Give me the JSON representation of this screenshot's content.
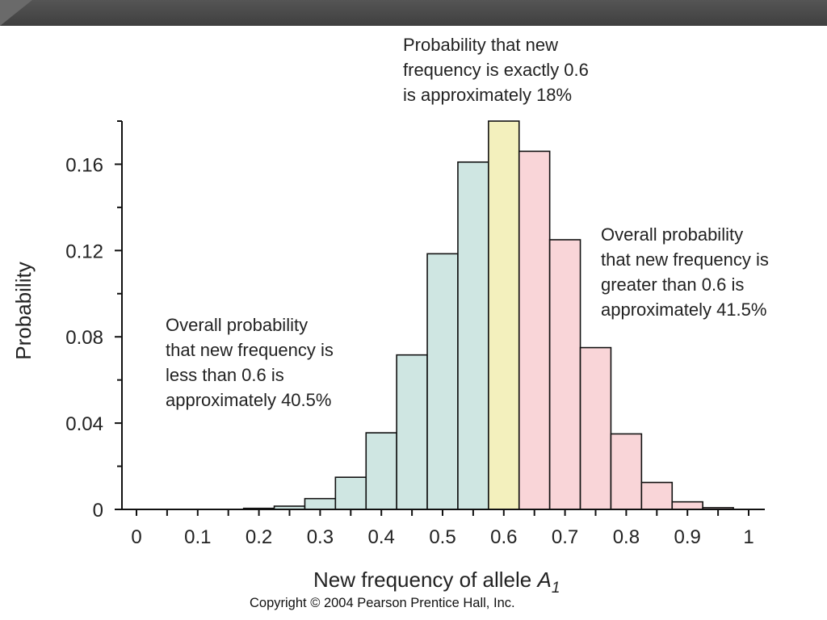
{
  "chart_data": {
    "type": "bar",
    "xlabel": "New frequency of allele ",
    "xlabel_symbol": "A",
    "xlabel_subscript": "1",
    "ylabel": "Probability",
    "xlim": [
      0,
      1
    ],
    "ylim": [
      0,
      0.18
    ],
    "x_ticks": [
      "0",
      "0.1",
      "0.2",
      "0.3",
      "0.4",
      "0.5",
      "0.6",
      "0.7",
      "0.8",
      "0.9",
      "1"
    ],
    "y_ticks": [
      "0",
      "0.04",
      "0.08",
      "0.12",
      "0.16"
    ],
    "bin_width": 0.05,
    "bins": [
      {
        "x": 0.2,
        "value": 0.0005,
        "group": "less"
      },
      {
        "x": 0.25,
        "value": 0.0015,
        "group": "less"
      },
      {
        "x": 0.3,
        "value": 0.005,
        "group": "less"
      },
      {
        "x": 0.35,
        "value": 0.0149,
        "group": "less"
      },
      {
        "x": 0.4,
        "value": 0.0355,
        "group": "less"
      },
      {
        "x": 0.45,
        "value": 0.0716,
        "group": "less"
      },
      {
        "x": 0.5,
        "value": 0.1185,
        "group": "less"
      },
      {
        "x": 0.55,
        "value": 0.161,
        "group": "less"
      },
      {
        "x": 0.6,
        "value": 0.18,
        "group": "exact"
      },
      {
        "x": 0.65,
        "value": 0.166,
        "group": "greater"
      },
      {
        "x": 0.7,
        "value": 0.125,
        "group": "greater"
      },
      {
        "x": 0.75,
        "value": 0.075,
        "group": "greater"
      },
      {
        "x": 0.8,
        "value": 0.035,
        "group": "greater"
      },
      {
        "x": 0.85,
        "value": 0.0125,
        "group": "greater"
      },
      {
        "x": 0.9,
        "value": 0.0035,
        "group": "greater"
      },
      {
        "x": 0.95,
        "value": 0.0008,
        "group": "greater"
      }
    ],
    "colors": {
      "less": "#cfe6e2",
      "exact": "#f3f0bd",
      "greater": "#f9d5d8",
      "edge": "#111111"
    }
  },
  "annotations": {
    "exact": "Probability that new\nfrequency is exactly 0.6\nis approximately 18%",
    "greater": "Overall probability\nthat new frequency is\ngreater than 0.6 is\napproximately 41.5%",
    "less": "Overall probability\nthat new frequency is\nless than 0.6 is\napproximately 40.5%"
  },
  "copyright": "Copyright © 2004 Pearson Prentice Hall, Inc."
}
